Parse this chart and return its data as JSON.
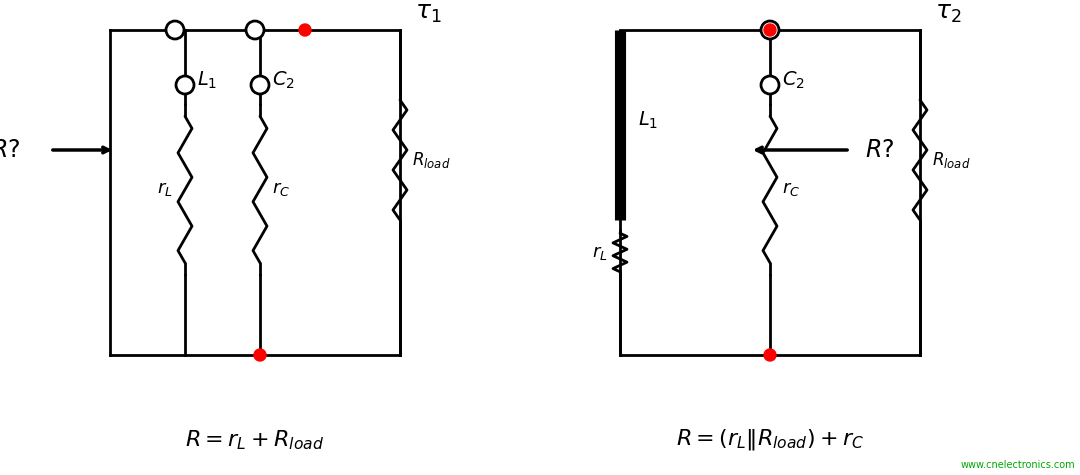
{
  "fig_width": 10.8,
  "fig_height": 4.75,
  "bg_color": "#ffffff",
  "line_color": "#000000",
  "red_dot_color": "#ff0000",
  "lw": 2.0,
  "circuit1": {
    "tau_label": "$\\tau_1$",
    "formula": "$R = r_L + R_{load}$",
    "L1_label": "$L_1$",
    "C2_label": "$C_2$",
    "rL_label": "$r_L$",
    "rC_label": "$r_C$",
    "Rload_label": "$R_{load}$"
  },
  "circuit2": {
    "tau_label": "$\\tau_2$",
    "formula": "$R = (r_L \\| R_{load}) + r_C$",
    "L1_label": "$L_1$",
    "C2_label": "$C_2$",
    "rL_label": "$r_L$",
    "rC_label": "$r_C$",
    "Rload_label": "$R_{load}$"
  },
  "watermark": "www.cnelectronics.com"
}
